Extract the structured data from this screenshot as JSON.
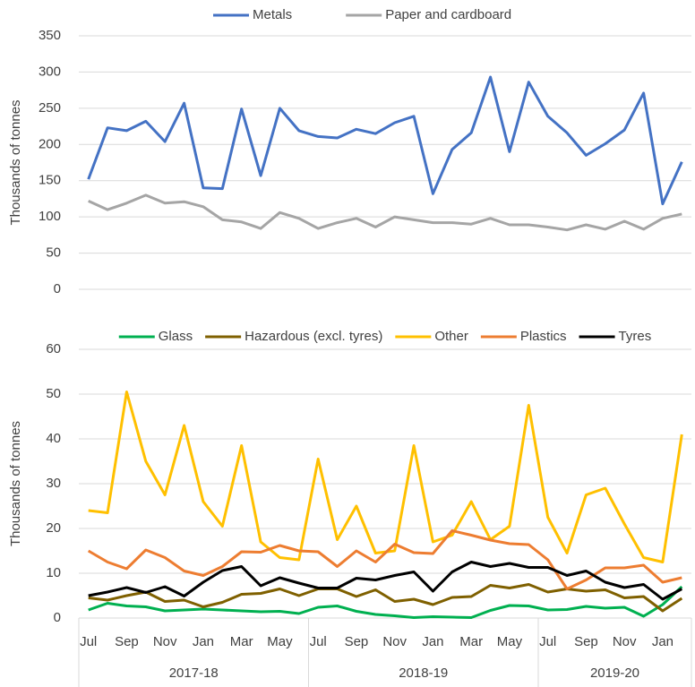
{
  "chart_data": [
    {
      "type": "line",
      "y_label": "Thousands of tonnes",
      "categories": [
        null,
        null,
        null,
        null,
        null,
        null,
        null,
        null,
        null,
        null,
        null,
        null,
        null,
        null,
        null,
        null,
        null,
        null,
        null,
        null,
        null,
        null,
        null,
        null,
        null,
        null,
        null,
        null,
        null,
        null,
        null,
        null
      ],
      "ylim": [
        0,
        350
      ],
      "yticks": [
        0,
        50,
        100,
        150,
        200,
        250,
        300,
        350
      ],
      "grid": true,
      "series": [
        {
          "name": "Metals",
          "color": "#4472c4",
          "values": [
            152,
            223,
            219,
            232,
            204,
            257,
            140,
            139,
            249,
            157,
            250,
            219,
            211,
            209,
            221,
            215,
            230,
            239,
            132,
            193,
            216,
            293,
            190,
            286,
            239,
            216,
            185,
            201,
            220,
            271,
            118,
            176
          ]
        },
        {
          "name": "Paper and cardboard",
          "color": "#a5a5a5",
          "values": [
            122,
            110,
            119,
            130,
            119,
            121,
            114,
            96,
            93,
            84,
            106,
            98,
            84,
            92,
            98,
            86,
            100,
            96,
            92,
            92,
            90,
            98,
            89,
            89,
            86,
            82,
            89,
            83,
            94,
            83,
            98,
            104
          ]
        }
      ]
    },
    {
      "type": "line",
      "y_label": "Thousands of tonnes",
      "categories": [
        "Jul",
        null,
        "Sep",
        null,
        "Nov",
        null,
        "Jan",
        null,
        "Mar",
        null,
        "May",
        null,
        "Jul",
        null,
        "Sep",
        null,
        "Nov",
        null,
        "Jan",
        null,
        "Mar",
        null,
        "May",
        null,
        "Jul",
        null,
        "Sep",
        null,
        "Nov",
        null,
        "Jan",
        null
      ],
      "groups": [
        "2017-18",
        "2018-19",
        "2019-20"
      ],
      "ylim": [
        0,
        60
      ],
      "yticks": [
        0,
        10,
        20,
        30,
        40,
        50,
        60
      ],
      "grid": true,
      "series": [
        {
          "name": "Glass",
          "color": "#00b050",
          "values": [
            1.8,
            3.3,
            2.7,
            2.5,
            1.6,
            1.8,
            2,
            1.8,
            1.6,
            1.4,
            1.5,
            1,
            2.4,
            2.7,
            1.5,
            0.8,
            0.5,
            0.1,
            0.3,
            0.2,
            0.1,
            1.7,
            2.8,
            2.7,
            1.8,
            1.9,
            2.6,
            2.2,
            2.4,
            0.4,
            3,
            7
          ]
        },
        {
          "name": "Hazardous (excl. tyres)",
          "color": "#7f6000",
          "values": [
            4.5,
            4,
            5,
            5.8,
            3.7,
            4,
            2.5,
            3.5,
            5.3,
            5.5,
            6.5,
            5,
            6.5,
            6.5,
            4.8,
            6.3,
            3.7,
            4.2,
            3,
            4.6,
            4.8,
            7.3,
            6.7,
            7.5,
            5.8,
            6.5,
            6,
            6.3,
            4.5,
            4.8,
            1.6,
            4.4
          ]
        },
        {
          "name": "Other",
          "color": "#ffc000",
          "values": [
            24,
            23.5,
            50.5,
            35,
            27.5,
            43,
            26,
            20.5,
            38.5,
            17,
            13.5,
            13,
            35.5,
            17.5,
            25,
            14.5,
            15,
            38.5,
            17,
            18.5,
            26,
            17.5,
            20.5,
            47.5,
            22.5,
            14.5,
            27.5,
            29,
            21,
            13.5,
            12.5,
            41
          ]
        },
        {
          "name": "Plastics",
          "color": "#ed7d31",
          "values": [
            15,
            12.5,
            11,
            15.2,
            13.5,
            10.5,
            9.5,
            11.5,
            14.8,
            14.7,
            16.2,
            15,
            14.8,
            11.5,
            15,
            12.5,
            16.5,
            14.6,
            14.4,
            19.5,
            18.5,
            17.4,
            16.6,
            16.4,
            13,
            6.5,
            8.5,
            11.2,
            11.2,
            11.8,
            8,
            9
          ]
        },
        {
          "name": "Tyres",
          "color": "#000000",
          "values": [
            5,
            5.8,
            6.8,
            5.7,
            7,
            4.9,
            8,
            10.6,
            11.5,
            7.2,
            9,
            7.8,
            6.7,
            6.7,
            8.9,
            8.5,
            9.5,
            10.3,
            6,
            10.3,
            12.5,
            11.5,
            12.2,
            11.3,
            11.3,
            9.5,
            10.5,
            8,
            6.8,
            7.5,
            4.2,
            6.5
          ]
        }
      ]
    }
  ]
}
